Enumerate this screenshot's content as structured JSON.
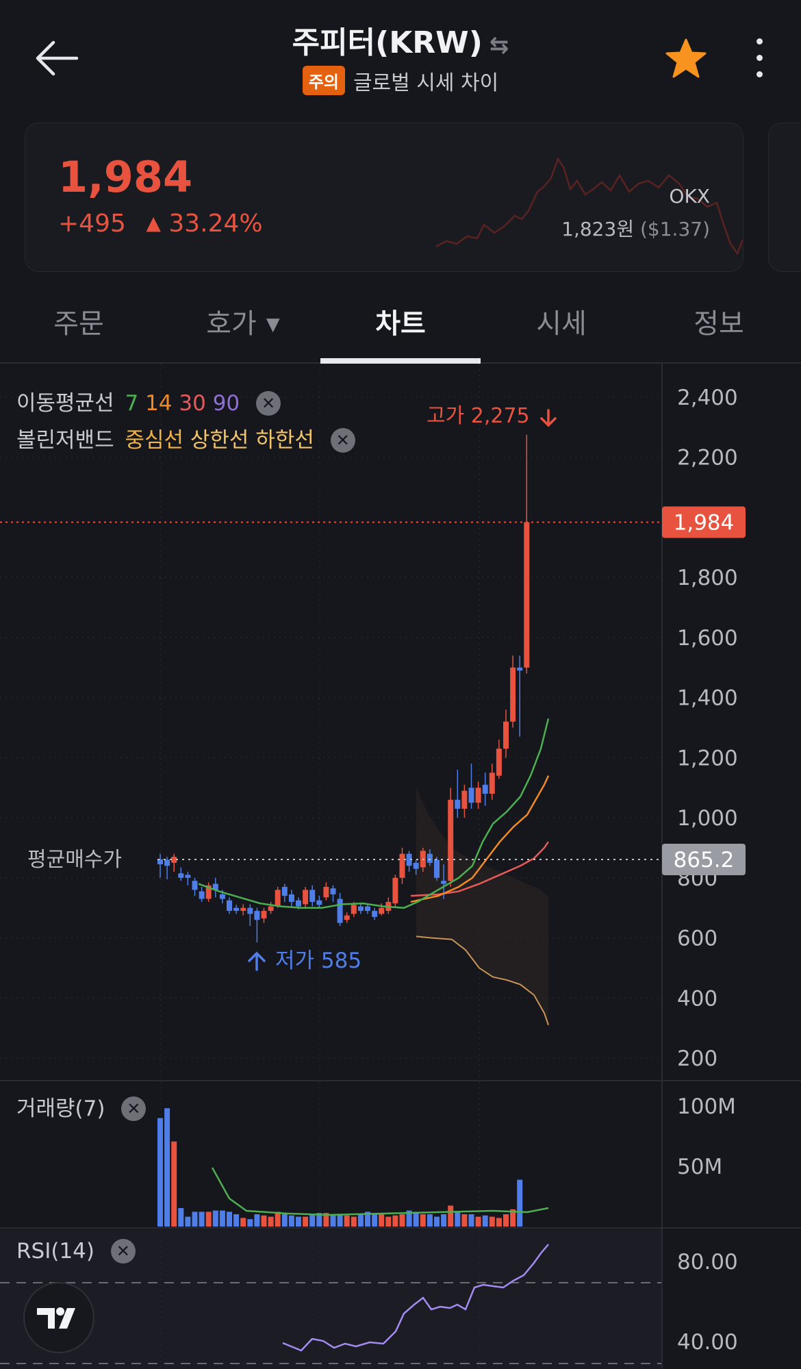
{
  "header": {
    "title": "주피터(KRW)",
    "warning_badge": "주의",
    "subtitle": "글로벌 시세 차이"
  },
  "price_card": {
    "price": "1,984",
    "change_amount": "+495",
    "change_percent": "33.24%",
    "exchange": "OKX",
    "exchange_price": "1,823원",
    "exchange_price_usd": "($1.37)"
  },
  "tabs": [
    {
      "label": "주문"
    },
    {
      "label": "호가"
    },
    {
      "label": "차트"
    },
    {
      "label": "시세"
    },
    {
      "label": "정보"
    }
  ],
  "active_tab": "차트",
  "legend": {
    "ma_label": "이동평균선",
    "ma_periods": [
      "7",
      "14",
      "30",
      "90"
    ],
    "bb_label": "볼린저밴드",
    "bb_lines": [
      "중심선",
      "상한선",
      "하한선"
    ],
    "volume_label": "거래량(7)",
    "rsi_label": "RSI(14)"
  },
  "annotations": {
    "high_label": "고가 2,275",
    "low_label": "저가 585",
    "current_price_tag": "1,984",
    "avg_buy_label": "평균매수가",
    "avg_buy_tag": "865.2"
  },
  "colors": {
    "up": "#e8533f",
    "down": "#4f7ee8",
    "ma7": "#4caf50",
    "ma14": "#f08a24",
    "ma30": "#e85a5a",
    "ma90": "#8f6fd6",
    "bb_mid": "#f0b24a",
    "bb_upper": "#f2c46b",
    "bb_lower": "#c99556",
    "rsi": "#a58cf0",
    "background": "#16171d"
  },
  "chart_data": [
    {
      "type": "candlestick",
      "y_ticks": [
        "2,400",
        "2,200",
        "1,800",
        "1,600",
        "1,400",
        "1,200",
        "1,000",
        "800",
        "600",
        "400",
        "200"
      ],
      "ylim": [
        200,
        2400
      ],
      "high": 2275,
      "low": 585,
      "current": 1984,
      "average_buy_price": 865.2
    },
    {
      "type": "bar",
      "title": "거래량(7)",
      "y_ticks": [
        "100M",
        "50M"
      ]
    },
    {
      "type": "line",
      "title": "RSI(14)",
      "y_ticks": [
        "80.00",
        "40.00"
      ]
    }
  ]
}
